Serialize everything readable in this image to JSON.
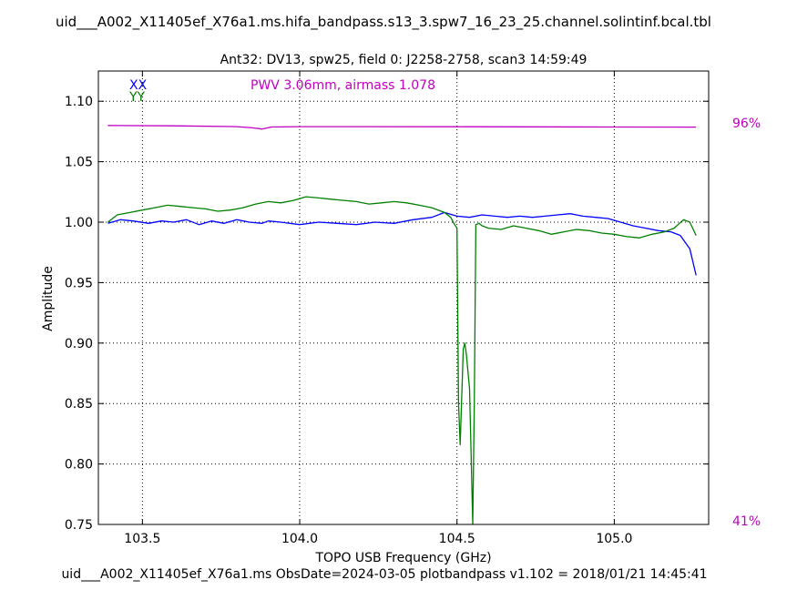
{
  "header": {
    "title": "uid___A002_X11405ef_X76a1.ms.hifa_bandpass.s13_3.spw7_16_23_25.channel.solintinf.bcal.tbl",
    "subtitle": "Ant32: DV13,  spw25,  field 0: J2258-2758,  scan3  14:59:49"
  },
  "footer": {
    "text": "uid___A002_X11405ef_X76a1.ms  ObsDate=2024-03-05   plotbandpass v1.102 = 2018/01/21 14:45:41"
  },
  "annotation": {
    "pwv_text": "PWV 3.06mm, airmass 1.078",
    "atm_top_pct": "96%",
    "atm_bottom_pct": "41%"
  },
  "colors": {
    "xx": "#0000ff",
    "yy": "#008000",
    "atm": "#c000c0",
    "grid": "#000000"
  },
  "chart_data": {
    "type": "line",
    "xlabel": "TOPO USB Frequency (GHz)",
    "ylabel": "Amplitude",
    "xlim": [
      103.36,
      105.3
    ],
    "ylim": [
      0.75,
      1.125
    ],
    "xticks": [
      103.5,
      104.0,
      104.5,
      105.0
    ],
    "xtick_labels": [
      "103.5",
      "104.0",
      "104.5",
      "105.0"
    ],
    "yticks": [
      0.75,
      0.8,
      0.85,
      0.9,
      0.95,
      1.0,
      1.05,
      1.1
    ],
    "ytick_labels": [
      "0.75",
      "0.80",
      "0.85",
      "0.90",
      "0.95",
      "1.00",
      "1.05",
      "1.10"
    ],
    "grid": true,
    "legend_position": "top-left",
    "series": [
      {
        "name": "XX",
        "color": "#0000ff",
        "x": [
          103.39,
          103.43,
          103.47,
          103.52,
          103.56,
          103.6,
          103.64,
          103.68,
          103.72,
          103.76,
          103.8,
          103.84,
          103.88,
          103.9,
          103.94,
          104.0,
          104.06,
          104.12,
          104.18,
          104.24,
          104.3,
          104.36,
          104.42,
          104.46,
          104.5,
          104.54,
          104.58,
          104.62,
          104.66,
          104.7,
          104.74,
          104.78,
          104.82,
          104.86,
          104.9,
          104.94,
          104.98,
          105.02,
          105.06,
          105.1,
          105.14,
          105.18,
          105.21,
          105.24,
          105.26
        ],
        "y": [
          0.999,
          1.002,
          1.001,
          0.999,
          1.001,
          1.0,
          1.002,
          0.998,
          1.001,
          0.999,
          1.002,
          1.0,
          0.999,
          1.001,
          1.0,
          0.998,
          1.0,
          0.999,
          0.998,
          1.0,
          0.999,
          1.002,
          1.004,
          1.008,
          1.005,
          1.004,
          1.006,
          1.005,
          1.004,
          1.005,
          1.004,
          1.005,
          1.006,
          1.007,
          1.005,
          1.004,
          1.003,
          1.0,
          0.997,
          0.995,
          0.993,
          0.992,
          0.989,
          0.978,
          0.956
        ]
      },
      {
        "name": "YY",
        "color": "#008000",
        "x": [
          103.39,
          103.42,
          103.46,
          103.5,
          103.54,
          103.58,
          103.62,
          103.66,
          103.7,
          103.74,
          103.78,
          103.82,
          103.86,
          103.9,
          103.94,
          103.98,
          104.02,
          104.06,
          104.1,
          104.14,
          104.18,
          104.22,
          104.26,
          104.3,
          104.34,
          104.38,
          104.42,
          104.46,
          104.48,
          104.49,
          104.5,
          104.505,
          104.51,
          104.52,
          104.525,
          104.53,
          104.54,
          104.545,
          104.55,
          104.555,
          104.56,
          104.57,
          104.58,
          104.6,
          104.64,
          104.68,
          104.72,
          104.76,
          104.8,
          104.84,
          104.88,
          104.92,
          104.96,
          105.0,
          105.04,
          105.08,
          105.12,
          105.16,
          105.19,
          105.22,
          105.24,
          105.26
        ],
        "y": [
          1.0,
          1.006,
          1.008,
          1.01,
          1.012,
          1.014,
          1.013,
          1.012,
          1.011,
          1.009,
          1.01,
          1.012,
          1.015,
          1.017,
          1.016,
          1.018,
          1.021,
          1.02,
          1.019,
          1.018,
          1.017,
          1.015,
          1.016,
          1.017,
          1.016,
          1.014,
          1.012,
          1.008,
          1.004,
          0.999,
          0.995,
          0.85,
          0.816,
          0.895,
          0.9,
          0.89,
          0.862,
          0.805,
          0.75,
          0.85,
          0.998,
          0.999,
          0.997,
          0.995,
          0.994,
          0.997,
          0.995,
          0.993,
          0.99,
          0.992,
          0.994,
          0.993,
          0.991,
          0.99,
          0.988,
          0.987,
          0.99,
          0.992,
          0.995,
          1.002,
          1.0,
          0.989
        ]
      },
      {
        "name": "atm",
        "color": "#c000c0",
        "x": [
          103.39,
          103.6,
          103.8,
          103.85,
          103.88,
          103.91,
          104.0,
          104.5,
          105.0,
          105.26
        ],
        "y": [
          1.08,
          1.0797,
          1.079,
          1.078,
          1.077,
          1.0787,
          1.079,
          1.0789,
          1.0787,
          1.0786
        ]
      }
    ]
  }
}
